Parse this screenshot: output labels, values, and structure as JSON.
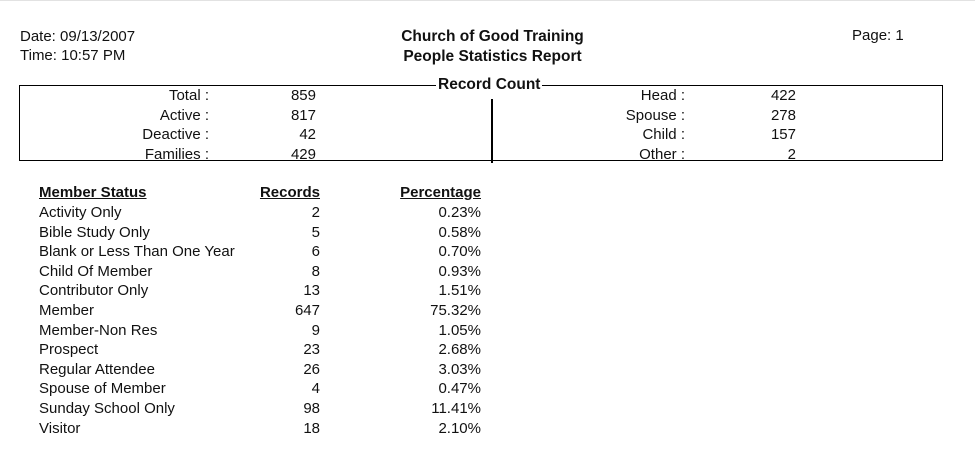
{
  "header": {
    "date": "Date: 09/13/2007",
    "time": "Time: 10:57 PM",
    "org": "Church of Good Training",
    "report": "People Statistics Report",
    "page": "Page: 1"
  },
  "record_count": {
    "title": "Record Count",
    "left": [
      {
        "label": "Total :",
        "value": "859"
      },
      {
        "label": "Active :",
        "value": "817"
      },
      {
        "label": "Deactive :",
        "value": "42"
      },
      {
        "label": "Families :",
        "value": "429"
      }
    ],
    "right": [
      {
        "label": "Head :",
        "value": "422"
      },
      {
        "label": "Spouse :",
        "value": "278"
      },
      {
        "label": "Child :",
        "value": "157"
      },
      {
        "label": "Other :",
        "value": "2"
      }
    ]
  },
  "status_table": {
    "headers": {
      "status": "Member Status",
      "records": "Records",
      "percentage": "Percentage"
    },
    "rows": [
      {
        "status": "Activity Only",
        "records": "2",
        "percentage": "0.23%"
      },
      {
        "status": "Bible Study Only",
        "records": "5",
        "percentage": "0.58%"
      },
      {
        "status": "Blank or Less Than One Year",
        "records": "6",
        "percentage": "0.70%"
      },
      {
        "status": "Child Of Member",
        "records": "8",
        "percentage": "0.93%"
      },
      {
        "status": "Contributor Only",
        "records": "13",
        "percentage": "1.51%"
      },
      {
        "status": "Member",
        "records": "647",
        "percentage": "75.32%"
      },
      {
        "status": "Member-Non Res",
        "records": "9",
        "percentage": "1.05%"
      },
      {
        "status": "Prospect",
        "records": "23",
        "percentage": "2.68%"
      },
      {
        "status": "Regular Attendee",
        "records": "26",
        "percentage": "3.03%"
      },
      {
        "status": "Spouse of Member",
        "records": "4",
        "percentage": "0.47%"
      },
      {
        "status": "Sunday School Only",
        "records": "98",
        "percentage": "11.41%"
      },
      {
        "status": "Visitor",
        "records": "18",
        "percentage": "2.10%"
      }
    ]
  }
}
